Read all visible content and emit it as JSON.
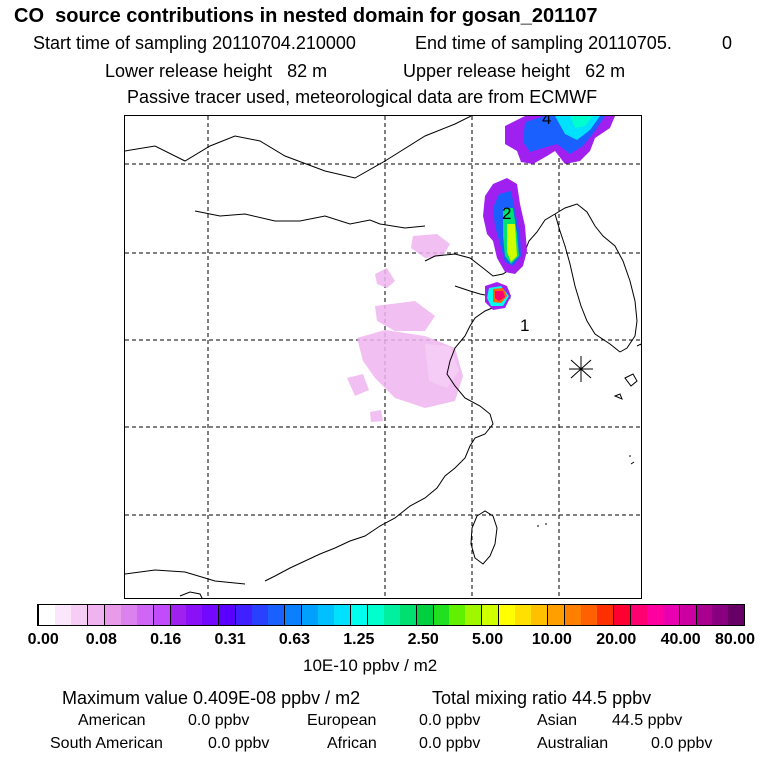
{
  "header": {
    "title": "CO  source contributions in nested domain for gosan_201107",
    "start_label": "Start time of sampling 20110704.210000",
    "end_label": "End time of sampling 20110705.",
    "end_tail": "0",
    "lower_release": "Lower release height   82 m",
    "upper_release": "Upper release height   62 m",
    "tracer_note": "Passive tracer used, meteorological data are from ECMWF"
  },
  "map": {
    "markers": [
      "1",
      "2",
      "4"
    ],
    "receptor_symbol": "star-burst"
  },
  "colorbar": {
    "unit": "10E-10 ppbv / m2",
    "ticks": [
      "0.00",
      "0.08",
      "0.16",
      "0.31",
      "0.63",
      "1.25",
      "2.50",
      "5.00",
      "10.00",
      "20.00",
      "40.00",
      "80.00"
    ],
    "colors": [
      "#ffffff",
      "#fbe6fb",
      "#f5cdf5",
      "#efb4ef",
      "#e89be8",
      "#dc82ee",
      "#cf66f5",
      "#c04cfb",
      "#a020f0",
      "#8a10f6",
      "#7208ff",
      "#5a00ff",
      "#4020ff",
      "#2a40ff",
      "#1a60ff",
      "#0a80ff",
      "#00a0ff",
      "#00c0ff",
      "#00e0ff",
      "#00ffee",
      "#00ffcc",
      "#00f0a0",
      "#00e070",
      "#00d040",
      "#20e020",
      "#60f000",
      "#a0f800",
      "#d0ff00",
      "#ffff00",
      "#ffe000",
      "#ffc000",
      "#ffa000",
      "#ff8000",
      "#ff6000",
      "#ff3000",
      "#ff0030",
      "#ff0070",
      "#ff00a0",
      "#e800b0",
      "#cc00a0",
      "#aa0090",
      "#880080",
      "#660066"
    ]
  },
  "stats": {
    "max_value": "Maximum value  0.409E-08 ppbv / m2",
    "total_mixing": "Total mixing ratio       44.5 ppbv",
    "american_label": "American",
    "american_value": "0.0 ppbv",
    "european_label": "European",
    "european_value": "0.0 ppbv",
    "asian_label": "Asian",
    "asian_value": "44.5 ppbv",
    "south_american_label": "South American",
    "south_american_value": "0.0 ppbv",
    "african_label": "African",
    "african_value": "0.0 ppbv",
    "australian_label": "Australian",
    "australian_value": "0.0 ppbv"
  }
}
